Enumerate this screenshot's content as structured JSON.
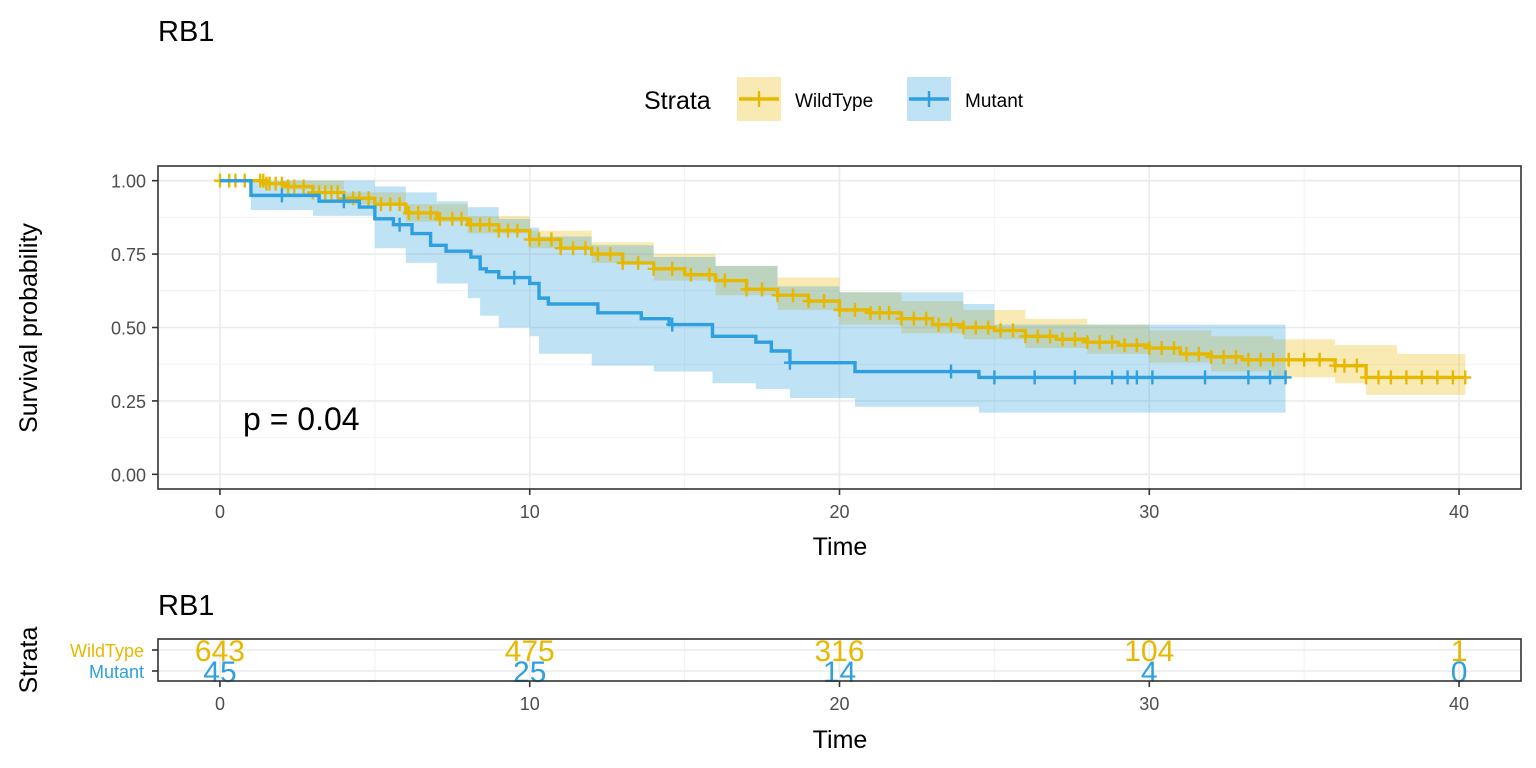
{
  "chart_data": [
    {
      "type": "line",
      "subtype": "kaplan-meier",
      "title": "RB1",
      "xlabel": "Time",
      "ylabel": "Survival probability",
      "xlim": [
        -2,
        42
      ],
      "ylim": [
        -0.05,
        1.05
      ],
      "xticks": [
        0,
        10,
        20,
        30,
        40
      ],
      "yticks": [
        "0.00",
        "0.25",
        "0.50",
        "0.75",
        "1.00"
      ],
      "grid": true,
      "legend": {
        "title": "Strata",
        "position": "top"
      },
      "annotation": "p = 0.04",
      "series": [
        {
          "name": "WildType",
          "color": "#E7B800",
          "steps": [
            [
              0,
              1.0
            ],
            [
              1.5,
              0.99
            ],
            [
              2.2,
              0.98
            ],
            [
              3,
              0.96
            ],
            [
              4,
              0.94
            ],
            [
              5,
              0.92
            ],
            [
              6,
              0.89
            ],
            [
              7,
              0.87
            ],
            [
              8,
              0.85
            ],
            [
              9,
              0.83
            ],
            [
              10,
              0.8
            ],
            [
              11,
              0.77
            ],
            [
              12,
              0.75
            ],
            [
              13,
              0.72
            ],
            [
              14,
              0.7
            ],
            [
              15,
              0.68
            ],
            [
              16,
              0.66
            ],
            [
              17,
              0.63
            ],
            [
              18,
              0.61
            ],
            [
              19,
              0.59
            ],
            [
              20,
              0.56
            ],
            [
              21,
              0.55
            ],
            [
              22,
              0.53
            ],
            [
              23,
              0.51
            ],
            [
              24,
              0.5
            ],
            [
              25,
              0.49
            ],
            [
              26,
              0.47
            ],
            [
              27,
              0.46
            ],
            [
              28,
              0.45
            ],
            [
              29,
              0.44
            ],
            [
              30,
              0.43
            ],
            [
              31,
              0.41
            ],
            [
              32,
              0.4
            ],
            [
              33,
              0.39
            ],
            [
              34,
              0.39
            ],
            [
              35,
              0.39
            ],
            [
              36,
              0.37
            ],
            [
              37,
              0.33
            ],
            [
              40.2,
              0.33
            ]
          ],
          "ci_upper": [
            [
              0,
              1.0
            ],
            [
              2,
              1.0
            ],
            [
              4,
              0.96
            ],
            [
              6,
              0.92
            ],
            [
              8,
              0.88
            ],
            [
              10,
              0.83
            ],
            [
              12,
              0.79
            ],
            [
              14,
              0.75
            ],
            [
              16,
              0.71
            ],
            [
              18,
              0.67
            ],
            [
              20,
              0.62
            ],
            [
              22,
              0.59
            ],
            [
              24,
              0.56
            ],
            [
              26,
              0.53
            ],
            [
              28,
              0.51
            ],
            [
              30,
              0.49
            ],
            [
              32,
              0.47
            ],
            [
              34,
              0.46
            ],
            [
              36,
              0.44
            ],
            [
              38,
              0.41
            ],
            [
              40.2,
              0.41
            ]
          ],
          "ci_lower": [
            [
              0,
              1.0
            ],
            [
              2,
              0.97
            ],
            [
              4,
              0.92
            ],
            [
              6,
              0.86
            ],
            [
              8,
              0.82
            ],
            [
              10,
              0.77
            ],
            [
              12,
              0.72
            ],
            [
              14,
              0.66
            ],
            [
              16,
              0.61
            ],
            [
              18,
              0.56
            ],
            [
              20,
              0.51
            ],
            [
              22,
              0.48
            ],
            [
              24,
              0.46
            ],
            [
              26,
              0.43
            ],
            [
              28,
              0.41
            ],
            [
              30,
              0.38
            ],
            [
              32,
              0.35
            ],
            [
              34,
              0.33
            ],
            [
              36,
              0.31
            ],
            [
              37,
              0.27
            ],
            [
              40.2,
              0.27
            ]
          ],
          "censor_times": [
            0,
            0.3,
            0.5,
            0.8,
            1.3,
            1.4,
            1.5,
            1.6,
            1.8,
            2.0,
            2.2,
            2.4,
            2.7,
            3.0,
            3.2,
            3.4,
            3.6,
            3.8,
            4.0,
            4.3,
            4.5,
            4.8,
            5.2,
            5.5,
            5.8,
            6.1,
            6.4,
            6.8,
            7.1,
            7.5,
            7.8,
            8.1,
            8.4,
            8.7,
            9.0,
            9.3,
            9.6,
            10.0,
            10.3,
            10.7,
            11.0,
            11.4,
            11.8,
            12.2,
            12.6,
            13.0,
            13.5,
            14.0,
            14.6,
            15.2,
            15.8,
            16.3,
            17.0,
            17.5,
            18.0,
            18.5,
            19.0,
            19.5,
            20.0,
            20.5,
            21.0,
            21.3,
            21.6,
            22.0,
            22.4,
            22.8,
            23.2,
            23.6,
            24.0,
            24.4,
            24.8,
            25.2,
            25.6,
            26.0,
            26.4,
            26.8,
            27.2,
            27.6,
            28.0,
            28.4,
            28.8,
            29.2,
            29.6,
            30.0,
            30.4,
            30.8,
            31.2,
            31.6,
            32.0,
            32.4,
            32.8,
            33.2,
            33.6,
            34.0,
            34.5,
            35.0,
            35.5,
            36.0,
            36.3,
            36.7,
            37.0,
            37.4,
            37.8,
            38.3,
            38.8,
            39.3,
            39.8,
            40.2
          ]
        },
        {
          "name": "Mutant",
          "color": "#2E9FDF",
          "steps": [
            [
              0,
              1.0
            ],
            [
              1.0,
              0.95
            ],
            [
              2.0,
              0.95
            ],
            [
              3.2,
              0.93
            ],
            [
              4.5,
              0.91
            ],
            [
              5.0,
              0.87
            ],
            [
              5.6,
              0.85
            ],
            [
              6.2,
              0.82
            ],
            [
              6.8,
              0.78
            ],
            [
              7.3,
              0.76
            ],
            [
              8.0,
              0.76
            ],
            [
              8.1,
              0.74
            ],
            [
              8.4,
              0.7
            ],
            [
              8.6,
              0.69
            ],
            [
              9.0,
              0.67
            ],
            [
              10.0,
              0.65
            ],
            [
              10.3,
              0.6
            ],
            [
              10.6,
              0.58
            ],
            [
              12.2,
              0.55
            ],
            [
              13.6,
              0.53
            ],
            [
              14.5,
              0.51
            ],
            [
              15.2,
              0.51
            ],
            [
              15.9,
              0.47
            ],
            [
              16.2,
              0.47
            ],
            [
              17.3,
              0.45
            ],
            [
              17.8,
              0.42
            ],
            [
              18.4,
              0.38
            ],
            [
              19.0,
              0.38
            ],
            [
              20.5,
              0.35
            ],
            [
              24.0,
              0.35
            ],
            [
              24.5,
              0.33
            ],
            [
              34.4,
              0.33
            ]
          ],
          "ci_upper": [
            [
              0,
              1.0
            ],
            [
              4.5,
              1.0
            ],
            [
              5.0,
              0.98
            ],
            [
              6,
              0.96
            ],
            [
              7,
              0.93
            ],
            [
              8,
              0.91
            ],
            [
              9,
              0.87
            ],
            [
              10,
              0.84
            ],
            [
              10.3,
              0.81
            ],
            [
              12,
              0.78
            ],
            [
              14,
              0.74
            ],
            [
              16,
              0.71
            ],
            [
              18,
              0.64
            ],
            [
              20,
              0.62
            ],
            [
              24,
              0.58
            ],
            [
              25,
              0.51
            ],
            [
              34.4,
              0.51
            ]
          ],
          "ci_lower": [
            [
              0,
              1.0
            ],
            [
              1,
              0.9
            ],
            [
              3,
              0.88
            ],
            [
              5,
              0.77
            ],
            [
              6,
              0.72
            ],
            [
              7,
              0.65
            ],
            [
              8,
              0.6
            ],
            [
              8.4,
              0.54
            ],
            [
              9,
              0.5
            ],
            [
              10,
              0.47
            ],
            [
              10.3,
              0.41
            ],
            [
              12,
              0.37
            ],
            [
              14,
              0.35
            ],
            [
              15.9,
              0.31
            ],
            [
              17.3,
              0.29
            ],
            [
              18.4,
              0.26
            ],
            [
              20.5,
              0.23
            ],
            [
              24.5,
              0.21
            ],
            [
              34.4,
              0.21
            ]
          ],
          "censor_times": [
            2.0,
            4.0,
            5.8,
            9.5,
            14.6,
            18.4,
            23.6,
            25.0,
            26.3,
            27.6,
            28.8,
            29.3,
            29.6,
            30.1,
            31.8,
            33.2,
            33.9,
            34.4
          ]
        }
      ]
    },
    {
      "type": "table",
      "title": "RB1",
      "xlabel": "Time",
      "ylabel": "Strata",
      "xlim": [
        -2,
        42
      ],
      "xticks": [
        0,
        10,
        20,
        30,
        40
      ],
      "x": [
        0,
        10,
        20,
        30,
        40
      ],
      "rows": [
        {
          "name": "WildType",
          "color": "#E7B800",
          "values": [
            643,
            475,
            316,
            104,
            1
          ]
        },
        {
          "name": "Mutant",
          "color": "#2E9FDF",
          "values": [
            45,
            25,
            14,
            4,
            0
          ]
        }
      ]
    }
  ]
}
